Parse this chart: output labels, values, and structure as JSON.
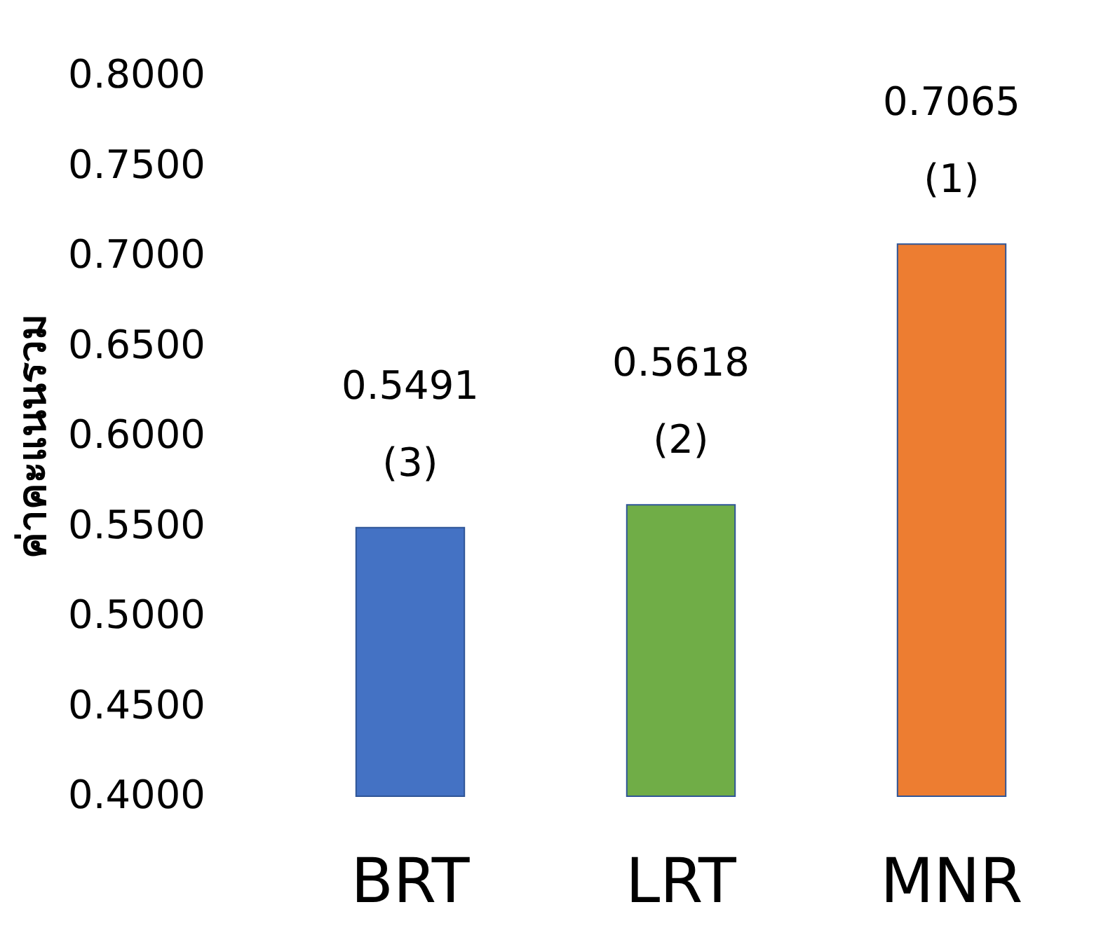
{
  "chart_data": {
    "type": "bar",
    "ylabel": "ค่าคะแนนรวม",
    "categories": [
      "BRT",
      "LRT",
      "MNR"
    ],
    "values": [
      0.5491,
      0.5618,
      0.7065
    ],
    "colors": [
      "#4472c4",
      "#70ad47",
      "#ed7d31"
    ],
    "ylim": [
      0.4,
      0.8
    ],
    "yticks": [
      {
        "value": 0.4,
        "label": "0.4000"
      },
      {
        "value": 0.45,
        "label": "0.4500"
      },
      {
        "value": 0.5,
        "label": "0.5000"
      },
      {
        "value": 0.55,
        "label": "0.5500"
      },
      {
        "value": 0.6,
        "label": "0.6000"
      },
      {
        "value": 0.65,
        "label": "0.6500"
      },
      {
        "value": 0.7,
        "label": "0.7000"
      },
      {
        "value": 0.75,
        "label": "0.7500"
      },
      {
        "value": 0.8,
        "label": "0.8000"
      }
    ],
    "data_labels": true,
    "annotations": [
      {
        "text": "(3)",
        "x": "BRT",
        "y": 0.5491
      },
      {
        "text": "(2)",
        "x": "LRT",
        "y": 0.5618
      },
      {
        "text": "(1)",
        "x": "MNR",
        "y": 0.7065
      }
    ],
    "grid": false
  }
}
